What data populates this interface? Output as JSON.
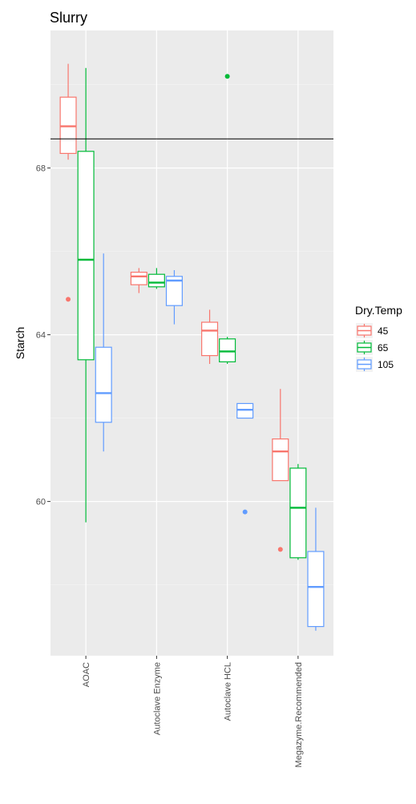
{
  "chart_data": {
    "type": "box",
    "title": "Slurry",
    "xlabel": "",
    "ylabel": "Starch",
    "ylim": [
      56.3,
      71.3
    ],
    "y_ticks": [
      60,
      64,
      68
    ],
    "reference_line": 68.7,
    "categories": [
      "AOAC",
      "Autoclave Enzyme",
      "Autoclave HCL",
      "Megazyme.Recommended"
    ],
    "legend": {
      "title": "Dry.Temp",
      "entries": [
        "45",
        "65",
        "105"
      ]
    },
    "series": [
      {
        "name": "45",
        "color": "#F8766D",
        "boxes": [
          {
            "category": "AOAC",
            "min": 68.2,
            "q1": 68.35,
            "median": 69.0,
            "q3": 69.7,
            "max": 70.5,
            "outliers": [
              64.85
            ]
          },
          {
            "category": "Autoclave Enzyme",
            "min": 65.0,
            "q1": 65.2,
            "median": 65.4,
            "q3": 65.5,
            "max": 65.6,
            "outliers": []
          },
          {
            "category": "Autoclave HCL",
            "min": 63.3,
            "q1": 63.5,
            "median": 64.1,
            "q3": 64.3,
            "max": 64.6,
            "outliers": []
          },
          {
            "category": "Megazyme.Recommended",
            "min": 60.5,
            "q1": 60.5,
            "median": 61.2,
            "q3": 61.5,
            "max": 62.7,
            "outliers": [
              58.85
            ]
          }
        ]
      },
      {
        "name": "65",
        "color": "#00BA38",
        "boxes": [
          {
            "category": "AOAC",
            "min": 59.5,
            "q1": 63.4,
            "median": 65.8,
            "q3": 68.4,
            "max": 70.4,
            "outliers": []
          },
          {
            "category": "Autoclave Enzyme",
            "min": 65.1,
            "q1": 65.15,
            "median": 65.25,
            "q3": 65.45,
            "max": 65.6,
            "outliers": []
          },
          {
            "category": "Autoclave HCL",
            "min": 63.3,
            "q1": 63.35,
            "median": 63.6,
            "q3": 63.9,
            "max": 63.95,
            "outliers": [
              70.2
            ]
          },
          {
            "category": "Megazyme.Recommended",
            "min": 58.6,
            "q1": 58.65,
            "median": 59.85,
            "q3": 60.8,
            "max": 60.9,
            "outliers": []
          }
        ]
      },
      {
        "name": "105",
        "color": "#619CFF",
        "boxes": [
          {
            "category": "AOAC",
            "min": 61.2,
            "q1": 61.9,
            "median": 62.6,
            "q3": 63.7,
            "max": 65.95,
            "outliers": []
          },
          {
            "category": "Autoclave Enzyme",
            "min": 64.25,
            "q1": 64.7,
            "median": 65.3,
            "q3": 65.4,
            "max": 65.55,
            "outliers": []
          },
          {
            "category": "Autoclave HCL",
            "min": 62.0,
            "q1": 62.0,
            "median": 62.2,
            "q3": 62.35,
            "max": 62.35,
            "outliers": [
              59.75
            ]
          },
          {
            "category": "Megazyme.Recommended",
            "min": 56.9,
            "q1": 57.0,
            "median": 57.95,
            "q3": 58.8,
            "max": 59.85,
            "outliers": []
          }
        ]
      }
    ],
    "grid": true,
    "legend_position": "right"
  }
}
